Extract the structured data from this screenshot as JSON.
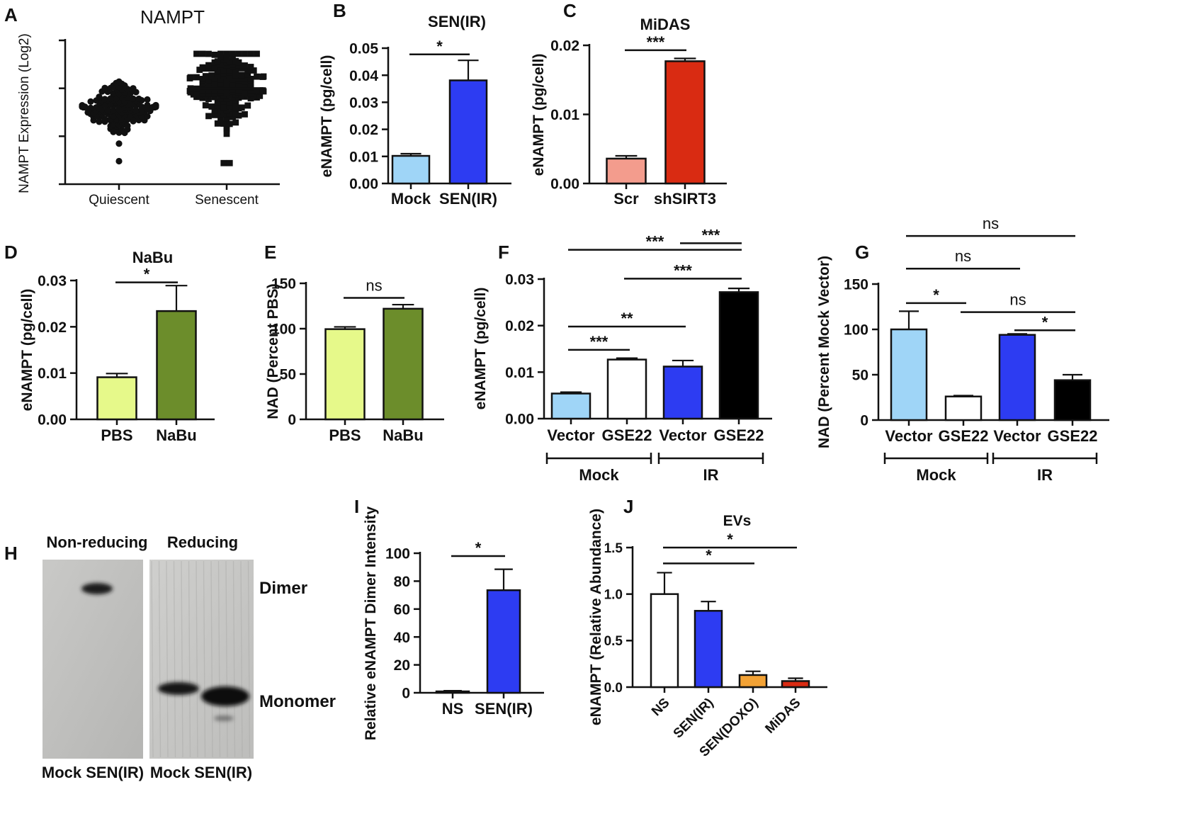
{
  "chart_data": [
    {
      "panel": "A",
      "type": "scatter",
      "title": "NAMPT",
      "ylabel": "NAMPT Expression (Log2)",
      "ylim": [
        0,
        15
      ],
      "yticks": [
        0,
        5,
        10,
        15
      ],
      "categories": [
        "Quiescent",
        "Senescent"
      ],
      "series": [
        {
          "name": "Quiescent",
          "marker": "circle",
          "mean": 7.8,
          "sd": 1.3,
          "n": 140,
          "min": 2.4,
          "max": 10.7
        },
        {
          "name": "Senescent",
          "marker": "square",
          "mean": 10.0,
          "sd": 2.0,
          "n": 190,
          "min": 2.2,
          "max": 13.6
        }
      ],
      "annotations": []
    },
    {
      "panel": "B",
      "type": "bar",
      "title": "SEN(IR)",
      "ylabel": "eNAMPT (pg/cell)",
      "ylim": [
        0,
        0.05
      ],
      "yticks": [
        0,
        0.01,
        0.02,
        0.03,
        0.04,
        0.05
      ],
      "ytick_labels": [
        "0.00",
        "0.01",
        "0.02",
        "0.03",
        "0.04",
        "0.05"
      ],
      "categories": [
        "Mock",
        "SEN(IR)"
      ],
      "values": [
        0.0102,
        0.0381
      ],
      "errors": [
        0.0008,
        0.0074
      ],
      "colors": [
        "#9fd5f7",
        "#2d3cf2"
      ],
      "annotations": [
        {
          "from": 0,
          "to": 1,
          "label": "*",
          "y": 0.0477
        }
      ]
    },
    {
      "panel": "C",
      "type": "bar",
      "title": "MiDAS",
      "ylabel": "eNAMPT (pg/cell)",
      "ylim": [
        0,
        0.02
      ],
      "yticks": [
        0,
        0.01,
        0.02
      ],
      "ytick_labels": [
        "0.00",
        "0.01",
        "0.02"
      ],
      "categories": [
        "Scr",
        "shSIRT3"
      ],
      "values": [
        0.0036,
        0.0177
      ],
      "errors": [
        0.0004,
        0.0004
      ],
      "colors": [
        "#f39c8d",
        "#d92b12"
      ],
      "annotations": [
        {
          "from": 0,
          "to": 1,
          "label": "***",
          "y": 0.0193
        }
      ]
    },
    {
      "panel": "D",
      "type": "bar",
      "title": "NaBu",
      "ylabel": "eNAMPT (pg/cell)",
      "ylim": [
        0,
        0.03
      ],
      "yticks": [
        0,
        0.01,
        0.02,
        0.03
      ],
      "ytick_labels": [
        "0.00",
        "0.01",
        "0.02",
        "0.03"
      ],
      "categories": [
        "PBS",
        "NaBu"
      ],
      "values": [
        0.0091,
        0.0234
      ],
      "errors": [
        0.0008,
        0.0055
      ],
      "colors": [
        "#e6f98a",
        "#6c8d2b"
      ],
      "annotations": [
        {
          "from": 0,
          "to": 1,
          "label": "*",
          "y": 0.0296
        }
      ]
    },
    {
      "panel": "E",
      "type": "bar",
      "title": "",
      "ylabel": "NAD (Percent PBS)",
      "ylim": [
        0,
        150
      ],
      "yticks": [
        0,
        50,
        100,
        150
      ],
      "ytick_labels": [
        "0",
        "50",
        "100",
        "150"
      ],
      "categories": [
        "PBS",
        "NaBu"
      ],
      "values": [
        99.5,
        122
      ],
      "errors": [
        2.5,
        4.5
      ],
      "colors": [
        "#e6f98a",
        "#6c8d2b"
      ],
      "annotations": [
        {
          "from": 0,
          "to": 1,
          "label": "ns",
          "y": 134
        }
      ]
    },
    {
      "panel": "F",
      "type": "bar",
      "title": "",
      "ylabel": "eNAMPT (pg/cell)",
      "ylim": [
        0,
        0.03
      ],
      "yticks": [
        0,
        0.01,
        0.02,
        0.03
      ],
      "ytick_labels": [
        "0.00",
        "0.01",
        "0.02",
        "0.03"
      ],
      "categories": [
        "Vector",
        "GSE22",
        "Vector",
        "GSE22"
      ],
      "groups": [
        {
          "label": "Mock",
          "from": 0,
          "to": 1
        },
        {
          "label": "IR",
          "from": 2,
          "to": 3
        }
      ],
      "values": [
        0.0054,
        0.0127,
        0.0112,
        0.0272
      ],
      "errors": [
        0.0003,
        0.0003,
        0.0013,
        0.0008
      ],
      "colors": [
        "#9fd5f7",
        "#ffffff",
        "#2d3cf2",
        "#000000"
      ],
      "annotations": [
        {
          "from": 0,
          "to": 1,
          "label": "***",
          "y": 0.0148
        },
        {
          "from": 0,
          "to": 2,
          "label": "**",
          "y": 0.0198
        },
        {
          "from": 1,
          "to": 3,
          "label": "***",
          "y": 0.0301
        },
        {
          "from": 0,
          "to": 3,
          "label": "***",
          "y": 0.0363
        },
        {
          "from": 2,
          "to": 3,
          "label": "***",
          "y": 0.0377
        }
      ]
    },
    {
      "panel": "G",
      "type": "bar",
      "title": "",
      "ylabel": "NAD (Percent Mock Vector)",
      "ylim": [
        0,
        150
      ],
      "yticks": [
        0,
        50,
        100,
        150
      ],
      "ytick_labels": [
        "0",
        "50",
        "100",
        "150"
      ],
      "categories": [
        "Vector",
        "GSE22",
        "Vector",
        "GSE22"
      ],
      "groups": [
        {
          "label": "Mock",
          "from": 0,
          "to": 1
        },
        {
          "label": "IR",
          "from": 2,
          "to": 3
        }
      ],
      "values": [
        100,
        26,
        94,
        44
      ],
      "errors": [
        20,
        1,
        1,
        6
      ],
      "colors": [
        "#9fd5f7",
        "#ffffff",
        "#2d3cf2",
        "#000000"
      ],
      "annotations": [
        {
          "from": 0,
          "to": 1,
          "label": "*",
          "y": 129
        },
        {
          "from": 1,
          "to": 3,
          "label": "ns",
          "y": 119
        },
        {
          "from": 2,
          "to": 3,
          "label": "*",
          "y": 99
        },
        {
          "from": 0,
          "to": 2,
          "label": "ns",
          "y": 167
        },
        {
          "from": 0,
          "to": 3,
          "label": "ns",
          "y": 203
        }
      ]
    },
    {
      "panel": "I",
      "type": "bar",
      "title": "",
      "ylabel": "Relative eNAMPT Dimer Intensity",
      "ylim": [
        0,
        100
      ],
      "yticks": [
        0,
        20,
        40,
        60,
        80,
        100
      ],
      "ytick_labels": [
        "0",
        "20",
        "40",
        "60",
        "80",
        "100"
      ],
      "categories": [
        "NS",
        "SEN(IR)"
      ],
      "values": [
        1,
        73.5
      ],
      "errors": [
        0.5,
        15
      ],
      "colors": [
        "#ffffff",
        "#2d3cf2"
      ],
      "annotations": [
        {
          "from": 0,
          "to": 1,
          "label": "*",
          "y": 98
        }
      ]
    },
    {
      "panel": "J",
      "type": "bar",
      "title": "EVs",
      "ylabel": "eNAMPT (Relative Abundance)",
      "ylim": [
        0,
        1.5
      ],
      "yticks": [
        0,
        0.5,
        1.0,
        1.5
      ],
      "ytick_labels": [
        "0.0",
        "0.5",
        "1.0",
        "1.5"
      ],
      "categories": [
        "NS",
        "SEN(IR)",
        "SEN(DOXO)",
        "MiDAS"
      ],
      "values": [
        1.0,
        0.82,
        0.13,
        0.065
      ],
      "errors": [
        0.23,
        0.1,
        0.04,
        0.03
      ],
      "colors": [
        "#ffffff",
        "#2d3cf2",
        "#f2a235",
        "#d92b12"
      ],
      "annotations": [
        {
          "from": 0,
          "to": 2,
          "label": "*",
          "y": 1.33
        },
        {
          "from": 0,
          "to": 3,
          "label": "*",
          "y": 1.5
        }
      ]
    }
  ],
  "blot": {
    "panel": "H",
    "headers": [
      "Non-reducing",
      "Reducing"
    ],
    "lane_labels": [
      "Mock SEN(IR)",
      "Mock SEN(IR)"
    ],
    "band_labels": [
      "Dimer",
      "Monomer"
    ]
  }
}
